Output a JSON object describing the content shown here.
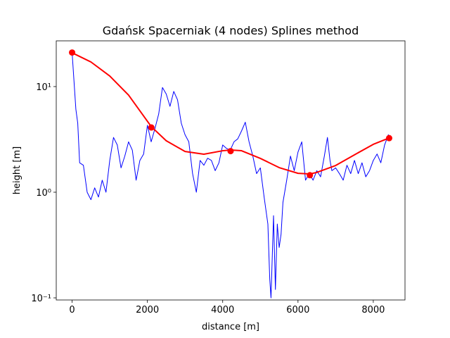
{
  "chart_data": {
    "type": "line",
    "title": "Gdańsk Spacerniak (4 nodes) Splines method",
    "xlabel": "distance [m]",
    "ylabel": "height [m]",
    "yscale": "log",
    "xlim": [
      -421,
      8842
    ],
    "ylim": [
      0.0955,
      27.1
    ],
    "xticks": [
      0,
      2000,
      4000,
      6000,
      8000
    ],
    "yticks": [
      {
        "value": 0.1,
        "label": "10⁻¹"
      },
      {
        "value": 1,
        "label": "10⁰"
      },
      {
        "value": 10,
        "label": "10¹"
      }
    ],
    "series": [
      {
        "color": "#0000ff",
        "style": "line",
        "width": 1,
        "x": [
          0,
          100,
          150,
          200,
          300,
          400,
          500,
          600,
          700,
          800,
          900,
          1000,
          1100,
          1200,
          1300,
          1400,
          1500,
          1600,
          1700,
          1800,
          1900,
          2000,
          2100,
          2200,
          2300,
          2400,
          2500,
          2600,
          2700,
          2800,
          2900,
          3000,
          3100,
          3200,
          3300,
          3400,
          3500,
          3600,
          3700,
          3800,
          3900,
          4000,
          4100,
          4200,
          4300,
          4400,
          4500,
          4600,
          4700,
          4800,
          4900,
          5000,
          5100,
          5200,
          5250,
          5283,
          5350,
          5400,
          5450,
          5500,
          5550,
          5600,
          5700,
          5800,
          5900,
          6000,
          6100,
          6200,
          6300,
          6400,
          6500,
          6600,
          6700,
          6782,
          6850,
          6900,
          7000,
          7100,
          7200,
          7300,
          7400,
          7500,
          7600,
          7700,
          7800,
          7900,
          8000,
          8100,
          8200,
          8300,
          8400,
          8421
        ],
        "values": [
          21,
          6.1,
          4.5,
          1.9,
          1.8,
          1.0,
          0.85,
          1.1,
          0.9,
          1.3,
          1.0,
          2.0,
          3.3,
          2.8,
          1.7,
          2.2,
          3.0,
          2.5,
          1.3,
          2.0,
          2.3,
          4.3,
          3.0,
          4.0,
          5.5,
          9.8,
          8.5,
          6.5,
          9.0,
          7.5,
          4.5,
          3.5,
          3.0,
          1.5,
          1.0,
          2.0,
          1.8,
          2.1,
          2.0,
          1.6,
          1.9,
          2.8,
          2.6,
          2.5,
          3.0,
          3.2,
          3.8,
          4.6,
          3.0,
          2.2,
          1.5,
          1.7,
          0.9,
          0.5,
          0.15,
          0.1,
          0.6,
          0.12,
          0.5,
          0.3,
          0.4,
          0.8,
          1.3,
          2.2,
          1.6,
          2.4,
          3.0,
          1.3,
          1.5,
          1.3,
          1.6,
          1.4,
          2.2,
          3.3,
          2.0,
          1.6,
          1.7,
          1.5,
          1.3,
          1.8,
          1.5,
          2.0,
          1.5,
          1.9,
          1.4,
          1.6,
          2.0,
          2.3,
          1.9,
          2.8,
          3.5,
          3.25
        ]
      },
      {
        "color": "#ff0000",
        "style": "line",
        "width": 2,
        "x": [
          0,
          500,
          1000,
          1500,
          2000,
          2105,
          2500,
          3000,
          3500,
          4000,
          4210,
          4500,
          5000,
          5500,
          6000,
          6316,
          6500,
          7000,
          7500,
          8000,
          8421
        ],
        "values": [
          20.9,
          17.1,
          12.6,
          8.3,
          4.7,
          4.17,
          3.07,
          2.43,
          2.29,
          2.47,
          2.51,
          2.47,
          2.09,
          1.71,
          1.51,
          1.49,
          1.54,
          1.79,
          2.26,
          2.84,
          3.26
        ]
      },
      {
        "color": "#ff0000",
        "style": "markers",
        "x": [
          0,
          2105,
          4210,
          6316,
          8421
        ],
        "values": [
          21,
          4.1,
          2.45,
          1.45,
          3.25
        ]
      }
    ]
  }
}
